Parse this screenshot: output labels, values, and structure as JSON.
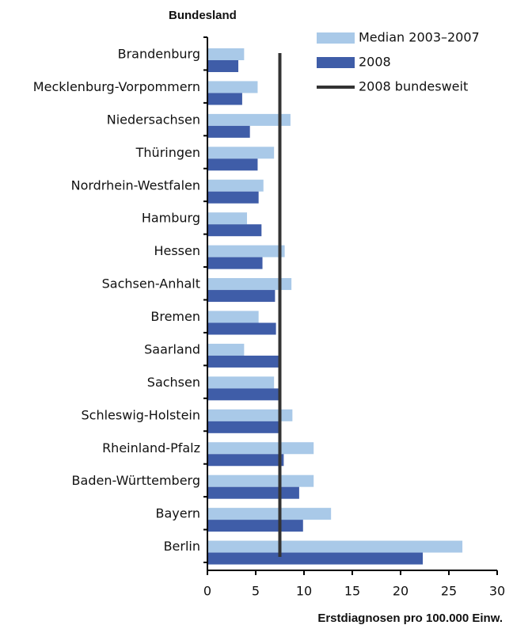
{
  "chart_data": {
    "type": "hbar",
    "y_axis_title": "Bundesland",
    "x_axis_title": "Erstdiagnosen pro 100.000 Einw.",
    "categories": [
      "Brandenburg",
      "Mecklenburg-Vorpommern",
      "Niedersachsen",
      "Thüringen",
      "Nordrhein-Westfalen",
      "Hamburg",
      "Hessen",
      "Sachsen-Anhalt",
      "Bremen",
      "Saarland",
      "Sachsen",
      "Schleswig-Holstein",
      "Rheinland-Pfalz",
      "Baden-Württemberg",
      "Bayern",
      "Berlin"
    ],
    "series": [
      {
        "name": "Median 2003–2007",
        "color": "#a9c9e8",
        "values": [
          3.8,
          5.2,
          8.6,
          6.9,
          5.8,
          4.1,
          8.0,
          8.7,
          5.3,
          3.8,
          6.9,
          8.8,
          11.0,
          11.0,
          12.8,
          26.4
        ]
      },
      {
        "name": "2008",
        "color": "#3f5da8",
        "values": [
          3.2,
          3.6,
          4.4,
          5.2,
          5.3,
          5.6,
          5.7,
          7.0,
          7.1,
          7.4,
          7.4,
          7.4,
          7.9,
          9.5,
          9.9,
          22.3
        ]
      }
    ],
    "reference_line": {
      "name": "2008 bundesweit",
      "value": 7.5,
      "color": "#333333"
    },
    "xlim": [
      0,
      30
    ],
    "xticks": [
      0,
      5,
      10,
      15,
      20,
      25,
      30
    ]
  }
}
